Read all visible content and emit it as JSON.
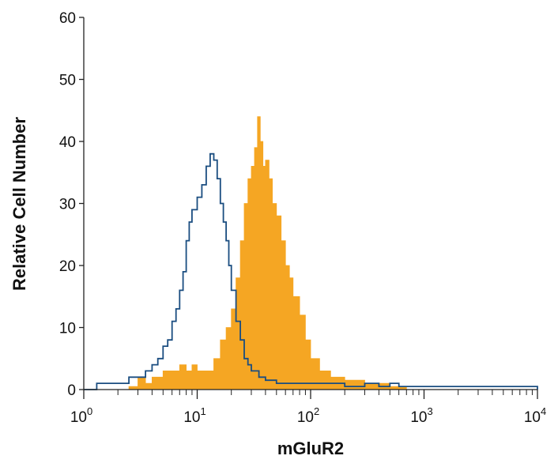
{
  "chart_data": {
    "type": "area",
    "title": "",
    "xlabel": "mGluR2",
    "ylabel": "Relative Cell Number",
    "x_scale": "log",
    "xlim": [
      1,
      10000
    ],
    "ylim": [
      0,
      60
    ],
    "x_ticks": [
      {
        "value": 1,
        "base": "10",
        "exp": "0"
      },
      {
        "value": 10,
        "base": "10",
        "exp": "1"
      },
      {
        "value": 100,
        "base": "10",
        "exp": "2"
      },
      {
        "value": 1000,
        "base": "10",
        "exp": "3"
      },
      {
        "value": 10000,
        "base": "10",
        "exp": "4"
      }
    ],
    "y_ticks": [
      0,
      10,
      20,
      30,
      40,
      50,
      60
    ],
    "grid": false,
    "legend": "none",
    "series": [
      {
        "style": "filled",
        "color": "#f5a623",
        "x": [
          2.5,
          3,
          3.5,
          4,
          5,
          6,
          7,
          8,
          9,
          10,
          12,
          14,
          16,
          18,
          20,
          22,
          24,
          26,
          28,
          30,
          32,
          34,
          36,
          38,
          40,
          43,
          46,
          50,
          55,
          60,
          65,
          70,
          80,
          90,
          100,
          120,
          150,
          200,
          300,
          500,
          650,
          700
        ],
        "y": [
          0.5,
          2,
          1,
          2,
          3,
          3,
          4,
          3,
          4,
          3,
          3,
          5,
          8,
          10,
          13,
          18,
          24,
          30,
          34,
          36,
          39,
          44,
          40,
          36,
          37,
          34,
          30,
          28,
          24,
          20,
          18,
          15,
          12,
          8,
          5,
          3,
          2,
          1.5,
          1,
          0.5,
          0.5,
          0
        ]
      },
      {
        "style": "outline",
        "color": "#1a4d80",
        "x": [
          1,
          1.3,
          1.6,
          2,
          2.5,
          3,
          3.5,
          4,
          4.5,
          5,
          5.5,
          6,
          6.5,
          7,
          7.5,
          8,
          8.5,
          9,
          10,
          11,
          12,
          13,
          14,
          15,
          16,
          17,
          18,
          19,
          20,
          22,
          24,
          26,
          28,
          30,
          35,
          40,
          50,
          60,
          80,
          100,
          150,
          200,
          300,
          400,
          500,
          600,
          10000
        ],
        "y": [
          0,
          1,
          1,
          1,
          2,
          2,
          3,
          4,
          5,
          7,
          8,
          11,
          13,
          16,
          19,
          24,
          27,
          29,
          31,
          33,
          36,
          38,
          37,
          34,
          30,
          27,
          24,
          20,
          16,
          11,
          8,
          5,
          4,
          3,
          2,
          1.5,
          1,
          1,
          1,
          1,
          1,
          0.5,
          1,
          0.5,
          1,
          0.5,
          0
        ]
      }
    ]
  }
}
